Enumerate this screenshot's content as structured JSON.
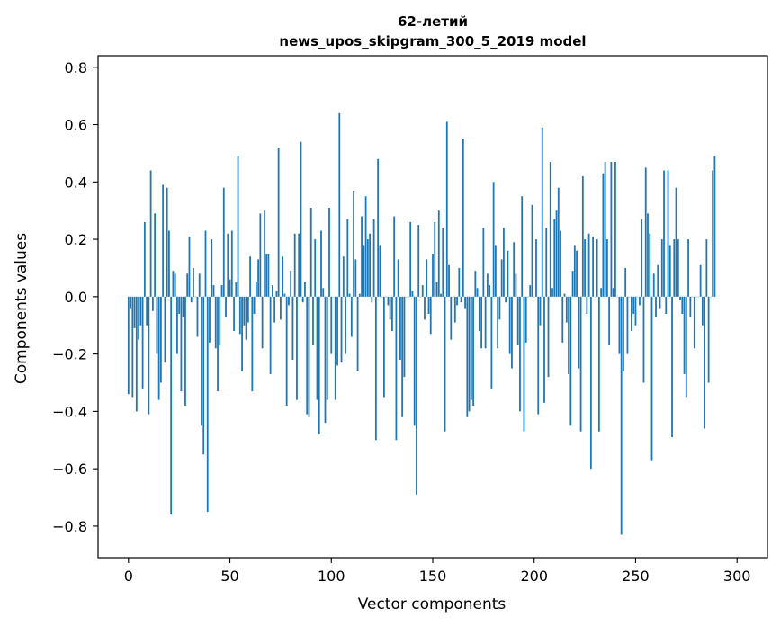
{
  "chart_data": {
    "type": "bar",
    "title_line1": "62-летий",
    "title_line2": "news_upos_skipgram_300_5_2019 model",
    "xlabel": "Vector components",
    "ylabel": "Components values",
    "xlim": [
      -15,
      315
    ],
    "ylim": [
      -0.91,
      0.84
    ],
    "xticks": [
      0,
      50,
      100,
      150,
      200,
      250,
      300
    ],
    "xtick_labels": [
      "0",
      "50",
      "100",
      "150",
      "200",
      "250",
      "300"
    ],
    "yticks": [
      -0.8,
      -0.6,
      -0.4,
      -0.2,
      0.0,
      0.2,
      0.4,
      0.6,
      0.8
    ],
    "ytick_labels": [
      "−0.8",
      "−0.6",
      "−0.4",
      "−0.2",
      "0.0",
      "0.2",
      "0.4",
      "0.6",
      "0.8"
    ],
    "bar_color": "#1f77b4",
    "grid": false,
    "values": [
      -0.34,
      -0.04,
      -0.35,
      -0.11,
      -0.4,
      -0.15,
      -0.1,
      -0.32,
      0.26,
      -0.1,
      -0.41,
      0.44,
      -0.05,
      0.29,
      -0.2,
      -0.36,
      -0.3,
      0.39,
      -0.23,
      0.38,
      0.23,
      -0.76,
      0.09,
      0.08,
      -0.2,
      -0.06,
      -0.33,
      -0.07,
      -0.38,
      0.08,
      0.21,
      -0.02,
      0.1,
      0.0,
      -0.14,
      0.08,
      -0.45,
      -0.55,
      0.23,
      -0.75,
      -0.16,
      0.2,
      0.04,
      -0.18,
      -0.33,
      -0.17,
      0.04,
      0.38,
      -0.07,
      0.22,
      0.06,
      0.23,
      -0.12,
      0.05,
      0.49,
      -0.13,
      -0.26,
      -0.1,
      -0.15,
      -0.09,
      0.14,
      -0.33,
      -0.06,
      0.05,
      0.13,
      0.29,
      -0.18,
      0.3,
      0.15,
      0.15,
      -0.27,
      0.04,
      -0.09,
      0.02,
      0.52,
      -0.08,
      0.14,
      0.01,
      -0.38,
      -0.03,
      0.09,
      -0.22,
      0.22,
      -0.36,
      0.22,
      0.54,
      -0.02,
      0.05,
      -0.41,
      -0.42,
      0.31,
      -0.17,
      0.2,
      -0.36,
      -0.48,
      0.23,
      0.03,
      -0.44,
      -0.36,
      0.31,
      -0.2,
      0.0,
      -0.36,
      -0.24,
      0.64,
      -0.23,
      0.14,
      -0.2,
      0.27,
      0.01,
      -0.14,
      0.37,
      0.13,
      -0.26,
      0.01,
      0.28,
      0.18,
      0.35,
      0.2,
      0.22,
      -0.02,
      0.27,
      -0.5,
      0.48,
      0.18,
      0.0,
      -0.35,
      0.0,
      -0.03,
      -0.08,
      -0.12,
      0.28,
      -0.5,
      0.13,
      -0.22,
      -0.42,
      -0.28,
      0.0,
      0.0,
      0.26,
      0.02,
      -0.45,
      -0.69,
      0.25,
      0.0,
      0.04,
      -0.08,
      0.13,
      -0.06,
      -0.13,
      0.15,
      0.26,
      0.05,
      0.3,
      0.01,
      0.24,
      -0.47,
      0.61,
      0.11,
      -0.15,
      0.0,
      -0.09,
      -0.03,
      0.1,
      -0.02,
      0.55,
      -0.04,
      -0.42,
      -0.4,
      -0.36,
      -0.38,
      0.09,
      0.03,
      -0.12,
      -0.18,
      0.24,
      -0.18,
      0.08,
      0.04,
      -0.32,
      0.4,
      0.18,
      -0.18,
      -0.08,
      0.13,
      0.24,
      -0.02,
      0.16,
      -0.2,
      -0.25,
      0.19,
      0.08,
      -0.17,
      -0.4,
      0.35,
      -0.47,
      -0.16,
      0.0,
      0.04,
      0.32,
      0.0,
      0.2,
      -0.41,
      -0.1,
      0.59,
      -0.37,
      0.24,
      -0.28,
      0.47,
      0.03,
      0.27,
      0.3,
      0.38,
      0.23,
      -0.16,
      0.01,
      -0.09,
      -0.27,
      -0.45,
      0.09,
      0.18,
      0.16,
      -0.25,
      -0.47,
      0.42,
      0.2,
      -0.06,
      0.22,
      -0.6,
      0.21,
      0.0,
      0.2,
      -0.47,
      0.03,
      0.43,
      0.47,
      0.2,
      -0.17,
      0.47,
      0.03,
      0.47,
      0.0,
      -0.2,
      -0.83,
      -0.26,
      0.1,
      -0.2,
      0.0,
      -0.12,
      -0.06,
      -0.1,
      0.0,
      -0.03,
      0.27,
      -0.3,
      0.45,
      0.29,
      0.22,
      -0.57,
      0.08,
      -0.07,
      0.11,
      -0.04,
      0.2,
      0.44,
      -0.06,
      0.44,
      0.18,
      -0.49,
      0.2,
      0.38,
      0.2,
      -0.01,
      -0.06,
      -0.27,
      -0.35,
      0.2,
      -0.07,
      0.0,
      -0.18,
      0.0,
      0.0,
      0.11,
      -0.1,
      -0.46,
      0.2,
      -0.3,
      0.0,
      0.44,
      0.49
    ]
  }
}
